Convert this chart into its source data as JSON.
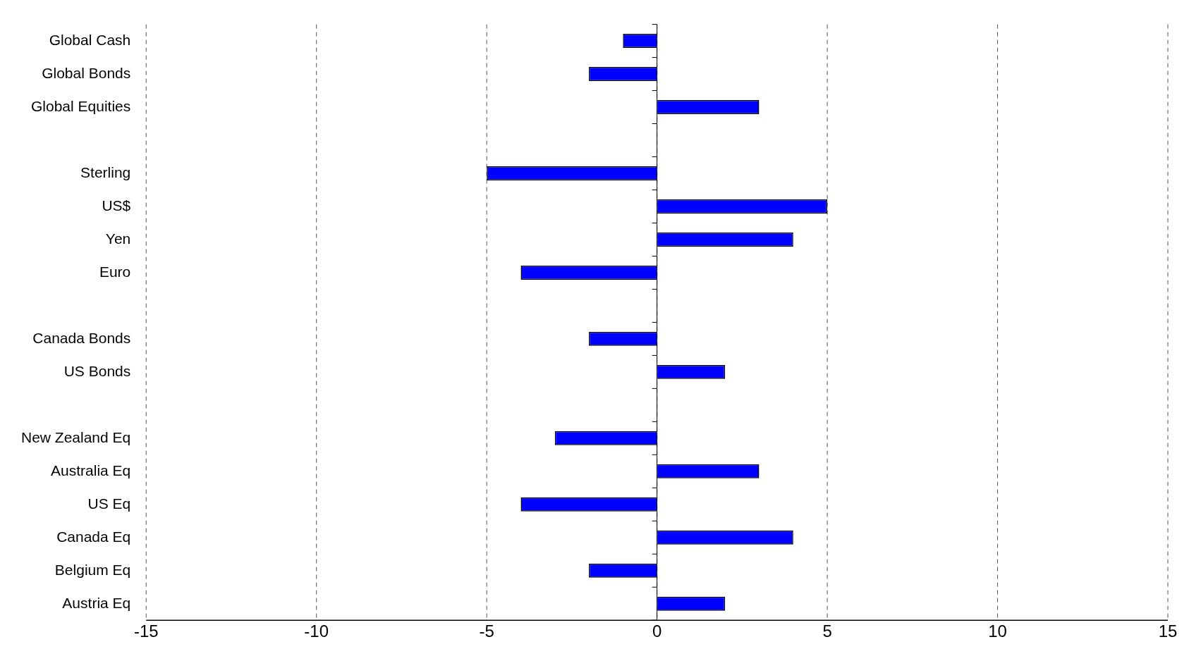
{
  "chart_data": {
    "type": "bar",
    "orientation": "horizontal",
    "categories": [
      "Global Cash",
      "Global Bonds",
      "Global Equities",
      null,
      "Sterling",
      "US$",
      "Yen",
      "Euro",
      null,
      "Canada Bonds",
      "US Bonds",
      null,
      "New Zealand Eq",
      "Australia Eq",
      "US Eq",
      "Canada Eq",
      "Belgium Eq",
      "Austria Eq"
    ],
    "values": [
      -1,
      -2,
      3,
      null,
      -5,
      5,
      4,
      -4,
      null,
      -2,
      2,
      null,
      -3,
      3,
      -4,
      4,
      -2,
      2
    ],
    "color": "#0000ff",
    "xlim": [
      -15,
      15
    ],
    "xticks": [
      -15,
      -10,
      -5,
      0,
      5,
      10,
      15
    ],
    "grid": "x",
    "legend": false
  }
}
